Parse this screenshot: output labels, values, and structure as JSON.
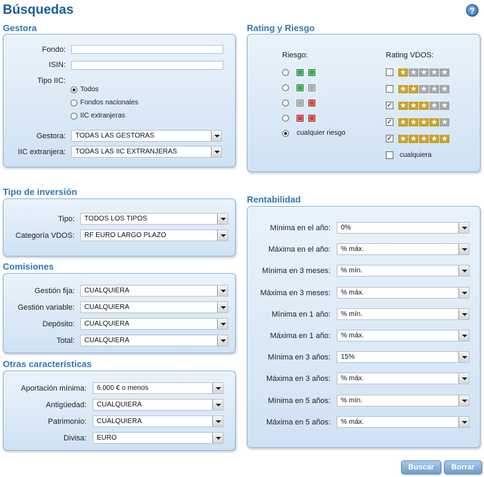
{
  "page": {
    "title": "Búsquedas",
    "help_glyph": "?"
  },
  "gestora": {
    "title": "Gestora",
    "fondo_label": "Fondo:",
    "isin_label": "ISIN:",
    "tipo_iic_label": "Tipo IIC:",
    "tipo_options": [
      "Todos",
      "Fondos nacionales",
      "IIC extranjeras"
    ],
    "tipo_selected": 0,
    "gestora_label": "Gestora:",
    "gestora_value": "TODAS LAS GESTORAS",
    "iic_label": "IIC extranjera:",
    "iic_value": "TODAS LAS IIC EXTRANJERAS"
  },
  "rating": {
    "title": "Rating y Riesgo",
    "riesgo_header": "Riesgo:",
    "rating_header": "Rating VDOS:",
    "riesgo_rows": [
      [
        "green",
        "green"
      ],
      [
        "green",
        "gray"
      ],
      [
        "gray",
        "red"
      ],
      [
        "red",
        "red"
      ]
    ],
    "riesgo_any_label": "cualquier riesgo",
    "riesgo_selected": 4,
    "rating_rows": [
      {
        "stars": 1,
        "checked": false
      },
      {
        "stars": 2,
        "checked": false
      },
      {
        "stars": 3,
        "checked": true
      },
      {
        "stars": 4,
        "checked": true
      },
      {
        "stars": 5,
        "checked": true
      }
    ],
    "rating_any_label": "cualquiera",
    "rating_any_checked": false,
    "star_glyph": "★",
    "check_glyph": "✓"
  },
  "tipo_inversion": {
    "title": "Tipo de inversión",
    "tipo_label": "Tipo:",
    "tipo_value": "TODOS LOS TIPOS",
    "categoria_label": "Categoría VDOS:",
    "categoria_value": "RF EURO LARGO PLAZO"
  },
  "comisiones": {
    "title": "Comisiones",
    "rows": [
      {
        "label": "Gestión fija:",
        "value": "CUALQUIERA"
      },
      {
        "label": "Gestión variable:",
        "value": "CUALQUIERA"
      },
      {
        "label": "Depósito:",
        "value": "CUALQUIERA"
      },
      {
        "label": "Total:",
        "value": "CUALQUIERA"
      }
    ]
  },
  "otras": {
    "title": "Otras características",
    "rows": [
      {
        "label": "Aportación mínima:",
        "value": "6.000 € o menos"
      },
      {
        "label": "Antigüedad:",
        "value": "CUALQUIERA"
      },
      {
        "label": "Patrimonio:",
        "value": "CUALQUIERA"
      },
      {
        "label": "Divisa:",
        "value": "EURO"
      }
    ]
  },
  "rentabilidad": {
    "title": "Rentabilidad",
    "rows": [
      {
        "label": "Mínima en el año:",
        "value": "0%"
      },
      {
        "label": "Máxima en el año:",
        "value": "% máx."
      },
      {
        "label": "Mínima en 3 meses:",
        "value": "% mín."
      },
      {
        "label": "Máxima en 3 meses:",
        "value": "% máx."
      },
      {
        "label": "Mínima en 1 año:",
        "value": "% mín."
      },
      {
        "label": "Máxima en 1 año:",
        "value": "% máx."
      },
      {
        "label": "Mínima en 3 años:",
        "value": "15%"
      },
      {
        "label": "Máxima en 3 años:",
        "value": "% máx."
      },
      {
        "label": "Mínima en 5 años:",
        "value": "% mín."
      },
      {
        "label": "Máxima en 5 años:",
        "value": "% máx."
      }
    ]
  },
  "actions": {
    "buscar": "Buscar",
    "borrar": "Borrar"
  }
}
